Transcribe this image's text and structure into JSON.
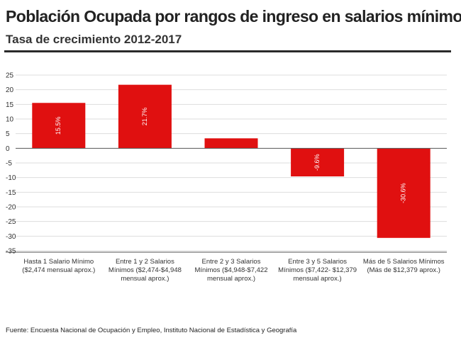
{
  "header": {
    "title": "Población Ocupada por rangos de ingreso en salarios mínimos.",
    "subtitle": "Tasa de crecimiento 2012-2017"
  },
  "footer": {
    "source": "Fuente: Encuesta Nacional de Ocupación y Empleo, Instituto Nacional de Estadística y Geografía"
  },
  "colors": {
    "bar": "#e01010",
    "grid": "#dddddd",
    "axis": "#555555",
    "text": "#333333"
  },
  "chart_data": {
    "type": "bar",
    "title": "Población Ocupada por rangos de ingreso en salarios mínimos.",
    "subtitle": "Tasa de crecimiento 2012-2017",
    "categories": [
      [
        "Hasta 1 Salario Mínimo",
        "($2,474 mensual aprox.)"
      ],
      [
        "Entre 1 y 2 Salarios",
        "Mínimos ($2,474-$4,948",
        "mensual aprox.)"
      ],
      [
        "Entre 2 y 3 Salarios",
        "Mínimos ($4,948-$7,422",
        "mensual aprox.)"
      ],
      [
        "Entre 3 y 5 Salarios",
        "Mínimos ($7,422- $12,379",
        "mensual aprox.)"
      ],
      [
        "Más de 5 Salarios Mínimos",
        "(Más de $12,379 aprox.)"
      ]
    ],
    "values": [
      15.5,
      21.7,
      3.4,
      -9.6,
      -30.6
    ],
    "data_labels": [
      "15.5%",
      "21.7%",
      "",
      "-9.6%",
      "-30.6%"
    ],
    "ylim": [
      -35,
      25
    ],
    "yticks": [
      25,
      20,
      15,
      10,
      5,
      0,
      -5,
      -10,
      -15,
      -20,
      -25,
      -30,
      -35
    ],
    "grid": true,
    "xlabel": "",
    "ylabel": ""
  }
}
